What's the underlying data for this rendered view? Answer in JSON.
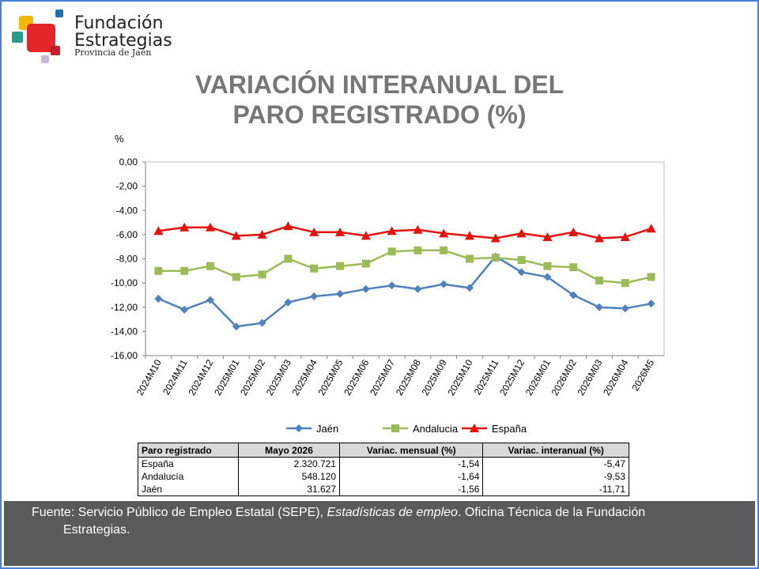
{
  "logo": {
    "line1": "Fundación",
    "line2": "Estrategias",
    "line3": "Provincia de Jaén"
  },
  "title": {
    "line1": "VARIACIÓN INTERANUAL DEL",
    "line2": "PARO REGISTRADO (%)"
  },
  "chart_data": {
    "type": "line",
    "ylabel": "%",
    "ylim": [
      -16,
      0
    ],
    "yticks": [
      "0,00",
      "-2,00",
      "-4,00",
      "-6,00",
      "-8,00",
      "-10,00",
      "-12,00",
      "-14,00",
      "-16,00"
    ],
    "grid": false,
    "legend_position": "bottom",
    "categories": [
      "2024M10",
      "2024M11",
      "2024M12",
      "2025M01",
      "2025M02",
      "2025M03",
      "2025M04",
      "2025M05",
      "2025M06",
      "2025M07",
      "2025M08",
      "2025M09",
      "2025M10",
      "2025M11",
      "2025M12",
      "2026M01",
      "2026M02",
      "2026M03",
      "2026M04",
      "2026M5"
    ],
    "series": [
      {
        "name": "Jaén",
        "color": "#4f81bd",
        "marker": "diamond",
        "values": [
          -11.3,
          -12.2,
          -11.4,
          -13.6,
          -13.3,
          -11.6,
          -11.1,
          -10.9,
          -10.5,
          -10.2,
          -10.5,
          -10.1,
          -10.4,
          -7.8,
          -9.1,
          -9.5,
          -11.0,
          -12.0,
          -12.1,
          -11.7
        ]
      },
      {
        "name": "Andalucia",
        "color": "#9bbb59",
        "marker": "square",
        "values": [
          -9.0,
          -9.0,
          -8.6,
          -9.5,
          -9.3,
          -8.0,
          -8.8,
          -8.6,
          -8.4,
          -7.4,
          -7.3,
          -7.3,
          -8.0,
          -7.9,
          -8.1,
          -8.6,
          -8.7,
          -9.8,
          -10.0,
          -9.5
        ]
      },
      {
        "name": "España",
        "color": "#e3120b",
        "marker": "triangle",
        "values": [
          -5.7,
          -5.4,
          -5.4,
          -6.1,
          -6.0,
          -5.3,
          -5.8,
          -5.8,
          -6.1,
          -5.7,
          -5.6,
          -5.9,
          -6.1,
          -6.3,
          -5.9,
          -6.2,
          -5.8,
          -6.3,
          -6.2,
          -5.5
        ]
      }
    ]
  },
  "table": {
    "headers": [
      "Paro registrado",
      "Mayo 2026",
      "Variac. mensual (%)",
      "Variac. interanual (%)"
    ],
    "rows": [
      [
        "España",
        "2.320.721",
        "-1,54",
        "-5,47"
      ],
      [
        "Andalucía",
        "548.120",
        "-1,64",
        "-9,53"
      ],
      [
        "Jaén",
        "31.627",
        "-1,56",
        "-11,71"
      ]
    ]
  },
  "footer": {
    "source_prefix": "Fuente: Servicio Público de Empleo Estatal (SEPE), ",
    "source_italic": "Estadísticas de empleo",
    "source_suffix": ". Oficina Técnica de la Fundación",
    "source_line2": "Estrategias."
  },
  "colors": {
    "frame": "#4a7fd6",
    "title": "#767676",
    "footer_bg": "#5a5a5a"
  }
}
